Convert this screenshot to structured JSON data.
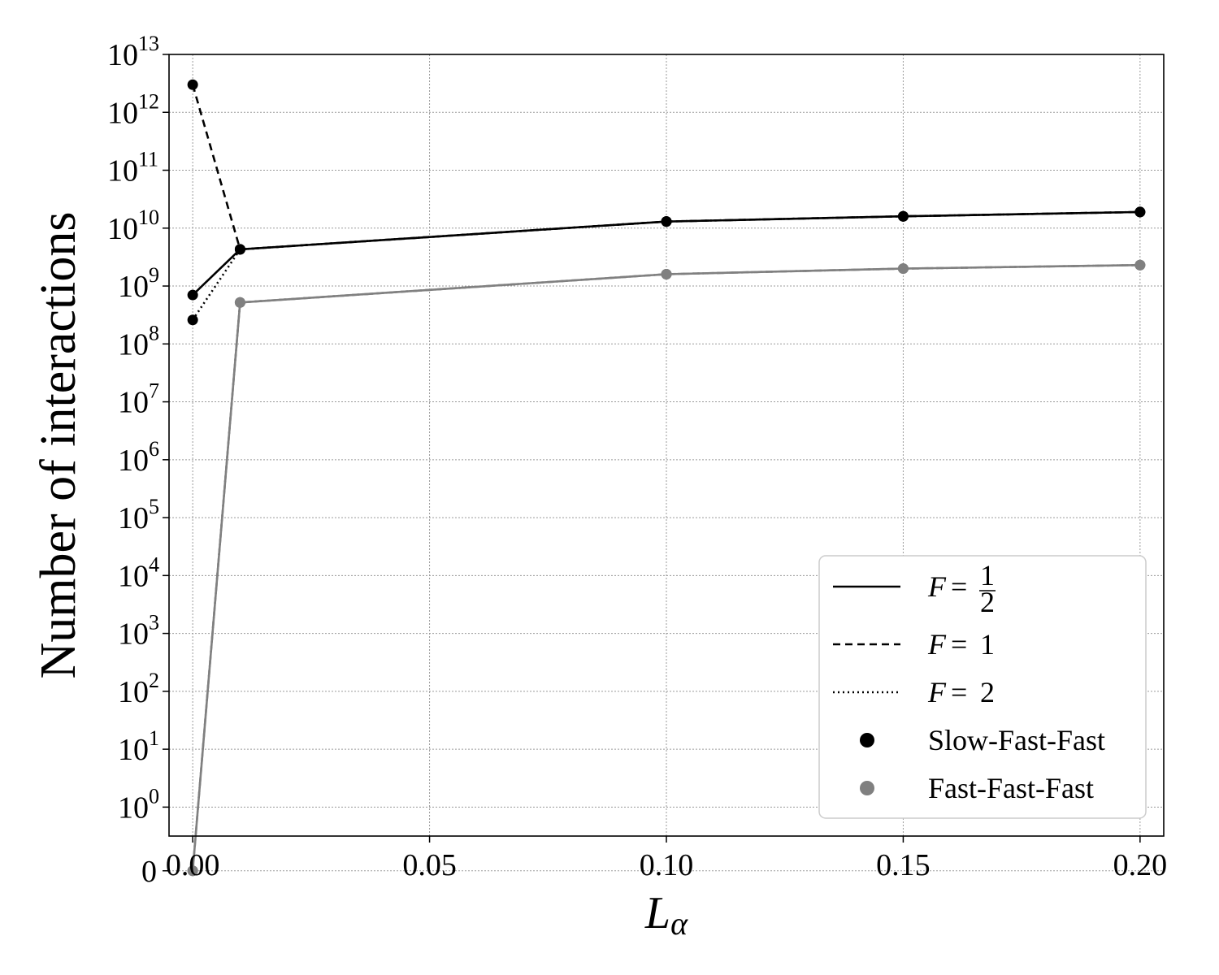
{
  "chart_data": {
    "type": "line",
    "xlabel_main": "L",
    "xlabel_sub": "α",
    "ylabel": "Number of interactions",
    "xlim": [
      -0.005,
      0.205
    ],
    "x_scale": "linear",
    "y_scale": "symlog",
    "ylim_exponent": [
      -0.5,
      13
    ],
    "x_ticks": [
      {
        "value": 0.0,
        "label": "0.00"
      },
      {
        "value": 0.05,
        "label": "0.05"
      },
      {
        "value": 0.1,
        "label": "0.10"
      },
      {
        "value": 0.15,
        "label": "0.15"
      },
      {
        "value": 0.2,
        "label": "0.20"
      }
    ],
    "y_ticks": [
      {
        "label": "0",
        "base": "",
        "exp": "",
        "pos": -1.1
      },
      {
        "label": "10",
        "base": "10",
        "exp": "0",
        "pos": 0
      },
      {
        "label": "10",
        "base": "10",
        "exp": "1",
        "pos": 1
      },
      {
        "label": "10",
        "base": "10",
        "exp": "2",
        "pos": 2
      },
      {
        "label": "10",
        "base": "10",
        "exp": "3",
        "pos": 3
      },
      {
        "label": "10",
        "base": "10",
        "exp": "4",
        "pos": 4
      },
      {
        "label": "10",
        "base": "10",
        "exp": "5",
        "pos": 5
      },
      {
        "label": "10",
        "base": "10",
        "exp": "6",
        "pos": 6
      },
      {
        "label": "10",
        "base": "10",
        "exp": "7",
        "pos": 7
      },
      {
        "label": "10",
        "base": "10",
        "exp": "8",
        "pos": 8
      },
      {
        "label": "10",
        "base": "10",
        "exp": "9",
        "pos": 9
      },
      {
        "label": "10",
        "base": "10",
        "exp": "10",
        "pos": 10
      },
      {
        "label": "10",
        "base": "10",
        "exp": "11",
        "pos": 11
      },
      {
        "label": "10",
        "base": "10",
        "exp": "12",
        "pos": 12
      },
      {
        "label": "10",
        "base": "10",
        "exp": "13",
        "pos": 13
      }
    ],
    "grid": true,
    "legend_position": "lower-right",
    "legend": [
      {
        "kind": "line",
        "style": "solid",
        "text_main": "F",
        "text_eq": "=",
        "frac_num": "1",
        "frac_den": "2",
        "text_val": ""
      },
      {
        "kind": "line",
        "style": "dashed",
        "text_main": "F",
        "text_eq": "=",
        "frac_num": "",
        "frac_den": "",
        "text_val": "1"
      },
      {
        "kind": "line",
        "style": "dotted",
        "text_main": "F",
        "text_eq": "=",
        "frac_num": "",
        "frac_den": "",
        "text_val": "2"
      },
      {
        "kind": "marker",
        "color": "#000000",
        "text": "Slow-Fast-Fast"
      },
      {
        "kind": "marker",
        "color": "#808080",
        "text": "Fast-Fast-Fast"
      }
    ],
    "series": [
      {
        "group": "Slow-Fast-Fast",
        "F": "1/2",
        "style": "solid",
        "color": "#000000",
        "x": [
          0.0,
          0.01,
          0.1,
          0.15,
          0.2
        ],
        "y": [
          700000000,
          4300000000,
          13000000000,
          16000000000,
          19000000000
        ]
      },
      {
        "group": "Slow-Fast-Fast",
        "F": "1",
        "style": "dashed",
        "color": "#000000",
        "x": [
          0.0,
          0.01,
          0.1,
          0.15,
          0.2
        ],
        "y": [
          3000000000000,
          4300000000,
          13000000000,
          16000000000,
          19000000000
        ]
      },
      {
        "group": "Slow-Fast-Fast",
        "F": "2",
        "style": "dotted",
        "color": "#000000",
        "x": [
          0.0,
          0.01,
          0.1,
          0.15,
          0.2
        ],
        "y": [
          260000000,
          4300000000,
          13000000000,
          16000000000,
          19000000000
        ]
      },
      {
        "group": "Fast-Fast-Fast",
        "F": "1/2",
        "style": "solid",
        "color": "#808080",
        "x": [
          0.0,
          0.01,
          0.1,
          0.15,
          0.2
        ],
        "y": [
          0,
          520000000,
          1600000000,
          2000000000,
          2300000000
        ]
      },
      {
        "group": "Fast-Fast-Fast",
        "F": "1",
        "style": "dashed",
        "color": "#808080",
        "x": [
          0.0,
          0.01,
          0.1,
          0.15,
          0.2
        ],
        "y": [
          0,
          520000000,
          1600000000,
          2000000000,
          2300000000
        ]
      },
      {
        "group": "Fast-Fast-Fast",
        "F": "2",
        "style": "dotted",
        "color": "#808080",
        "x": [
          0.0,
          0.01,
          0.1,
          0.15,
          0.2
        ],
        "y": [
          0,
          520000000,
          1600000000,
          2000000000,
          2300000000
        ]
      }
    ]
  }
}
